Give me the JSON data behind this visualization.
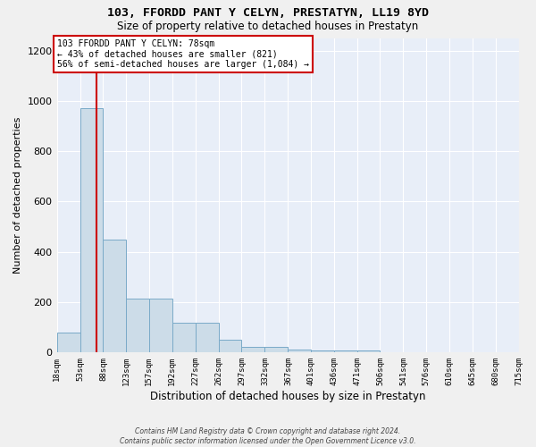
{
  "title": "103, FFORDD PANT Y CELYN, PRESTATYN, LL19 8YD",
  "subtitle": "Size of property relative to detached houses in Prestatyn",
  "xlabel": "Distribution of detached houses by size in Prestatyn",
  "ylabel": "Number of detached properties",
  "bar_color": "#ccdce8",
  "bar_edge_color": "#7aaac8",
  "background_color": "#e8eef8",
  "fig_background_color": "#f0f0f0",
  "grid_color": "#ffffff",
  "bin_edges": [
    18,
    53,
    88,
    123,
    157,
    192,
    227,
    262,
    297,
    332,
    367,
    401,
    436,
    471,
    506,
    541,
    576,
    610,
    645,
    680,
    715
  ],
  "bar_heights": [
    80,
    970,
    450,
    215,
    215,
    120,
    120,
    50,
    22,
    22,
    13,
    10,
    10,
    8,
    0,
    0,
    0,
    0,
    0,
    0
  ],
  "property_size": 78,
  "red_line_color": "#cc0000",
  "annotation_line1": "103 FFORDD PANT Y CELYN: 78sqm",
  "annotation_line2": "← 43% of detached houses are smaller (821)",
  "annotation_line3": "56% of semi-detached houses are larger (1,084) →",
  "annotation_box_color": "#ffffff",
  "annotation_border_color": "#cc0000",
  "ylim": [
    0,
    1250
  ],
  "yticks": [
    0,
    200,
    400,
    600,
    800,
    1000,
    1200
  ],
  "footer_text": "Contains HM Land Registry data © Crown copyright and database right 2024.\nContains public sector information licensed under the Open Government Licence v3.0.",
  "tick_labels": [
    "18sqm",
    "53sqm",
    "88sqm",
    "123sqm",
    "157sqm",
    "192sqm",
    "227sqm",
    "262sqm",
    "297sqm",
    "332sqm",
    "367sqm",
    "401sqm",
    "436sqm",
    "471sqm",
    "506sqm",
    "541sqm",
    "576sqm",
    "610sqm",
    "645sqm",
    "680sqm",
    "715sqm"
  ]
}
